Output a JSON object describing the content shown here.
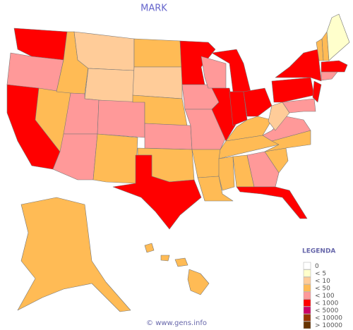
{
  "header": {
    "title": "MARK"
  },
  "legend": {
    "title": "LEGENDA",
    "items": [
      {
        "label": "0",
        "color": "#ffffff"
      },
      {
        "label": "< 5",
        "color": "#ffffcc"
      },
      {
        "label": "< 10",
        "color": "#ffcc99"
      },
      {
        "label": "< 50",
        "color": "#ffbb55"
      },
      {
        "label": "< 100",
        "color": "#ff9999"
      },
      {
        "label": "< 1000",
        "color": "#ff0000"
      },
      {
        "label": "< 5000",
        "color": "#cc0066"
      },
      {
        "label": "< 10000",
        "color": "#993300"
      },
      {
        "label": "> 10000",
        "color": "#663300"
      }
    ]
  },
  "footer": {
    "credit": "© www.gens.info"
  }
}
